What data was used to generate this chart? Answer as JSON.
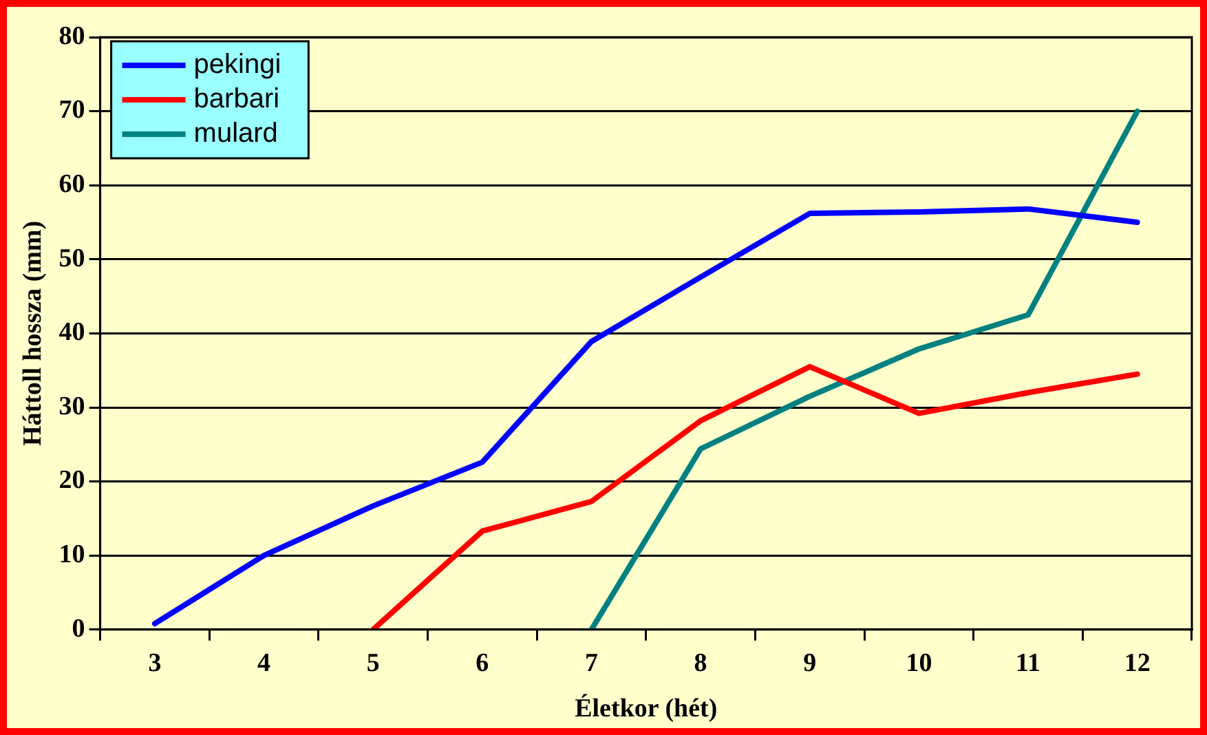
{
  "chart_data": {
    "type": "line",
    "xlabel": "Életkor (hét)",
    "ylabel": "Háttoll hossza (mm)",
    "categories": [
      "3",
      "4",
      "5",
      "6",
      "7",
      "8",
      "9",
      "10",
      "11",
      "12"
    ],
    "series": [
      {
        "name": "pekingi",
        "color": "#0000ff",
        "values": [
          0.8,
          10,
          16.7,
          22.6,
          38.9,
          47.6,
          56.2,
          56.4,
          56.8,
          55
        ]
      },
      {
        "name": "barbari",
        "color": "#ff0000",
        "values": [
          null,
          null,
          0,
          13.3,
          17.3,
          28.2,
          35.5,
          29.2,
          32,
          34.5
        ]
      },
      {
        "name": "mulard",
        "color": "#008080",
        "values": [
          null,
          null,
          null,
          null,
          0,
          24.4,
          31.5,
          37.9,
          42.5,
          70
        ]
      }
    ],
    "ylim": [
      0,
      80
    ],
    "yticks": [
      0,
      10,
      20,
      30,
      40,
      50,
      60,
      70,
      80
    ],
    "grid": "y",
    "legend": "top left",
    "marker": "none",
    "line_style": "solid"
  }
}
